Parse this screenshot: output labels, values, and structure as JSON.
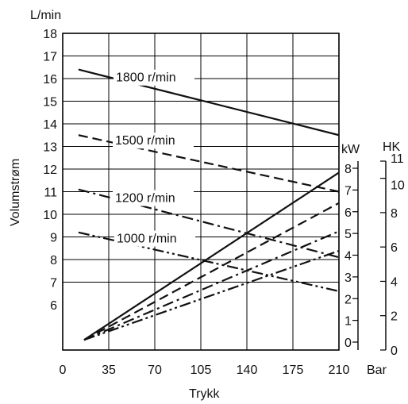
{
  "chart_data": {
    "type": "line",
    "xlabel": "Trykk",
    "x_unit": "Bar",
    "ylabel": "Volumstrøm",
    "y_unit": "L/min",
    "xlim": [
      0,
      210
    ],
    "ylim": [
      4,
      18
    ],
    "x_ticks": [
      "0",
      "35",
      "70",
      "105",
      "140",
      "175",
      "210"
    ],
    "y_ticks": [
      "6",
      "7",
      "8",
      "9",
      "10",
      "11",
      "12",
      "13",
      "14",
      "15",
      "16",
      "17",
      "18"
    ],
    "grid": true,
    "power_axis_kw": {
      "unit": "kW",
      "range": [
        0,
        8
      ],
      "ticks": [
        "0",
        "1",
        "2",
        "3",
        "4",
        "5",
        "6",
        "7",
        "8"
      ]
    },
    "power_axis_hp": {
      "unit": "HK",
      "range": [
        0,
        11
      ],
      "ticks": [
        "0",
        "2",
        "4",
        "6",
        "8",
        "10",
        "11"
      ]
    },
    "flow_series": [
      {
        "name": "1800 r/min",
        "style": "solid",
        "x": [
          12,
          210
        ],
        "y": [
          16.4,
          13.5
        ]
      },
      {
        "name": "1500 r/min",
        "style": "dashed",
        "x": [
          12,
          210
        ],
        "y": [
          13.5,
          11.0
        ]
      },
      {
        "name": "1200 r/min",
        "style": "dash-dot",
        "x": [
          12,
          210
        ],
        "y": [
          11.1,
          8.1
        ]
      },
      {
        "name": "1000 r/min",
        "style": "dash-dot-dot",
        "x": [
          12,
          210
        ],
        "y": [
          9.2,
          6.6
        ]
      }
    ],
    "power_series": [
      {
        "speed": "1800 r/min",
        "style": "solid",
        "x": [
          12,
          210
        ],
        "kw": [
          0.1,
          7.8
        ]
      },
      {
        "speed": "1500 r/min",
        "style": "dashed",
        "x": [
          12,
          210
        ],
        "kw": [
          0.1,
          6.4
        ]
      },
      {
        "speed": "1200 r/min",
        "style": "dash-dot",
        "x": [
          12,
          210
        ],
        "kw": [
          0.1,
          5.1
        ]
      },
      {
        "speed": "1000 r/min",
        "style": "dash-dot-dot",
        "x": [
          12,
          210
        ],
        "kw": [
          0.1,
          4.2
        ]
      }
    ]
  }
}
